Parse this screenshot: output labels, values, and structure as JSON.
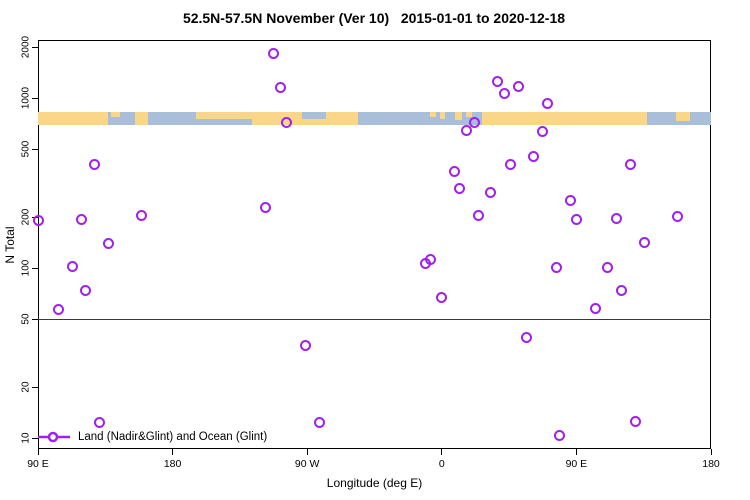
{
  "title": "52.5N-57.5N November (Ver 10)   2015-01-01 to 2020-12-18",
  "axes": {
    "xlabel": "Longitude (deg E)",
    "ylabel": "N Total",
    "y_scale": "log10",
    "x_ticks": [
      {
        "label": "90 E",
        "lon_axis": 90
      },
      {
        "label": "180",
        "lon_axis": 180
      },
      {
        "label": "90 W",
        "lon_axis": 270
      },
      {
        "label": "0",
        "lon_axis": 360
      },
      {
        "label": "90 E",
        "lon_axis": 450
      },
      {
        "label": "180",
        "lon_axis": 540
      }
    ],
    "y_ticks": [
      {
        "label": "2000",
        "value": 2000
      },
      {
        "label": "1000",
        "value": 1000
      },
      {
        "label": "500",
        "value": 500
      },
      {
        "label": "200",
        "value": 200
      },
      {
        "label": "100",
        "value": 100
      },
      {
        "label": "50",
        "value": 50
      },
      {
        "label": "20",
        "value": 20
      },
      {
        "label": "10",
        "value": 10
      }
    ]
  },
  "legend": {
    "label": "Land (Nadir&Glint) and Ocean (Glint)"
  },
  "colors": {
    "point": "#A020F0",
    "land": "#FAD689",
    "ocean": "#A9BED8",
    "refline": "#3a3a3a",
    "axis": "#000000"
  },
  "chart_data": {
    "type": "scatter",
    "title": "52.5N-57.5N November (Ver 10)   2015-01-01 to 2020-12-18",
    "xlabel": "Longitude (deg E)",
    "ylabel": "N Total",
    "x_axis_span_lon_axis": [
      90,
      540
    ],
    "y_range": [
      10,
      2000
    ],
    "grid": false,
    "legend_position": "bottom-left-inside",
    "reference_line_n": 50,
    "points": [
      {
        "lon": -112.5,
        "lon_axis": 247.5,
        "n": 1830
      },
      {
        "lon": -108,
        "lon_axis": 252,
        "n": 1150
      },
      {
        "lon": 37,
        "lon_axis": 397,
        "n": 1250
      },
      {
        "lon": 42,
        "lon_axis": 402,
        "n": 1060
      },
      {
        "lon": 51,
        "lon_axis": 411,
        "n": 1180
      },
      {
        "lon": 71,
        "lon_axis": 431,
        "n": 930
      },
      {
        "lon": -104,
        "lon_axis": 256,
        "n": 720
      },
      {
        "lon": 16.5,
        "lon_axis": 376.5,
        "n": 650
      },
      {
        "lon": 22,
        "lon_axis": 382,
        "n": 720
      },
      {
        "lon": 67,
        "lon_axis": 427,
        "n": 640
      },
      {
        "lon": 128,
        "lon_axis": 128,
        "n": 410
      },
      {
        "lon": 8.5,
        "lon_axis": 368.5,
        "n": 370
      },
      {
        "lon": 61,
        "lon_axis": 421,
        "n": 455
      },
      {
        "lon": 46,
        "lon_axis": 406,
        "n": 410
      },
      {
        "lon": 126,
        "lon_axis": 486,
        "n": 410
      },
      {
        "lon": 12,
        "lon_axis": 372,
        "n": 293
      },
      {
        "lon": 32.5,
        "lon_axis": 392.5,
        "n": 281
      },
      {
        "lon": -118,
        "lon_axis": 242,
        "n": 227
      },
      {
        "lon": 159.5,
        "lon_axis": 159.5,
        "n": 204
      },
      {
        "lon": 119,
        "lon_axis": 119,
        "n": 194
      },
      {
        "lon": 90,
        "lon_axis": 90.3,
        "n": 192
      },
      {
        "lon": 24.7,
        "lon_axis": 384.7,
        "n": 205
      },
      {
        "lon": 86,
        "lon_axis": 446,
        "n": 250
      },
      {
        "lon": 90,
        "lon_axis": 450,
        "n": 193
      },
      {
        "lon": 116.5,
        "lon_axis": 476.5,
        "n": 196
      },
      {
        "lon": 157.5,
        "lon_axis": 517.5,
        "n": 203
      },
      {
        "lon": 137.3,
        "lon_axis": 137.3,
        "n": 140
      },
      {
        "lon": 113,
        "lon_axis": 113,
        "n": 102
      },
      {
        "lon": 122,
        "lon_axis": 122,
        "n": 74
      },
      {
        "lon": 103.5,
        "lon_axis": 103.5,
        "n": 57
      },
      {
        "lon": -7.5,
        "lon_axis": 352.5,
        "n": 112
      },
      {
        "lon": -11,
        "lon_axis": 349,
        "n": 107
      },
      {
        "lon": 0,
        "lon_axis": 360,
        "n": 67
      },
      {
        "lon": 135.3,
        "lon_axis": 495.3,
        "n": 141
      },
      {
        "lon": 77,
        "lon_axis": 437,
        "n": 101
      },
      {
        "lon": 111,
        "lon_axis": 471,
        "n": 101
      },
      {
        "lon": 120,
        "lon_axis": 480,
        "n": 74
      },
      {
        "lon": 102.5,
        "lon_axis": 462.5,
        "n": 58
      },
      {
        "lon": -91.3,
        "lon_axis": 268.7,
        "n": 35
      },
      {
        "lon": 56.5,
        "lon_axis": 416.5,
        "n": 39
      },
      {
        "lon": 131,
        "lon_axis": 131,
        "n": 12.4
      },
      {
        "lon": -82,
        "lon_axis": 278,
        "n": 12.4
      },
      {
        "lon": 79,
        "lon_axis": 439,
        "n": 10.4
      },
      {
        "lon": 129.5,
        "lon_axis": 489.5,
        "n": 12.5
      }
    ],
    "map_strip": {
      "n_top": 830,
      "n_bottom": 700,
      "segments": [
        {
          "from": 90,
          "to": 540,
          "surface": "ocean",
          "top": 0,
          "bottom": 1
        },
        {
          "from": 90,
          "to": 137,
          "surface": "land",
          "top": 0,
          "bottom": 1
        },
        {
          "from": 139,
          "to": 145,
          "surface": "land",
          "top": 0,
          "bottom": 0.4
        },
        {
          "from": 155,
          "to": 163.5,
          "surface": "land",
          "top": 0,
          "bottom": 1
        },
        {
          "from": 195.5,
          "to": 233,
          "surface": "land",
          "top": 0,
          "bottom": 0.55
        },
        {
          "from": 233,
          "to": 266.5,
          "surface": "land",
          "top": 0,
          "bottom": 1
        },
        {
          "from": 266.5,
          "to": 282.5,
          "surface": "land",
          "top": 0.5,
          "bottom": 1
        },
        {
          "from": 282.5,
          "to": 304,
          "surface": "land",
          "top": 0,
          "bottom": 1
        },
        {
          "from": 352,
          "to": 356,
          "surface": "land",
          "top": 0,
          "bottom": 0.4
        },
        {
          "from": 358.8,
          "to": 362,
          "surface": "land",
          "top": 0,
          "bottom": 0.55
        },
        {
          "from": 369,
          "to": 373.5,
          "surface": "land",
          "top": 0,
          "bottom": 0.6
        },
        {
          "from": 376,
          "to": 380,
          "surface": "land",
          "top": 0,
          "bottom": 0.4
        },
        {
          "from": 387,
          "to": 497,
          "surface": "land",
          "top": 0,
          "bottom": 1
        },
        {
          "from": 516.5,
          "to": 526,
          "surface": "land",
          "top": 0,
          "bottom": 0.7
        }
      ]
    }
  }
}
